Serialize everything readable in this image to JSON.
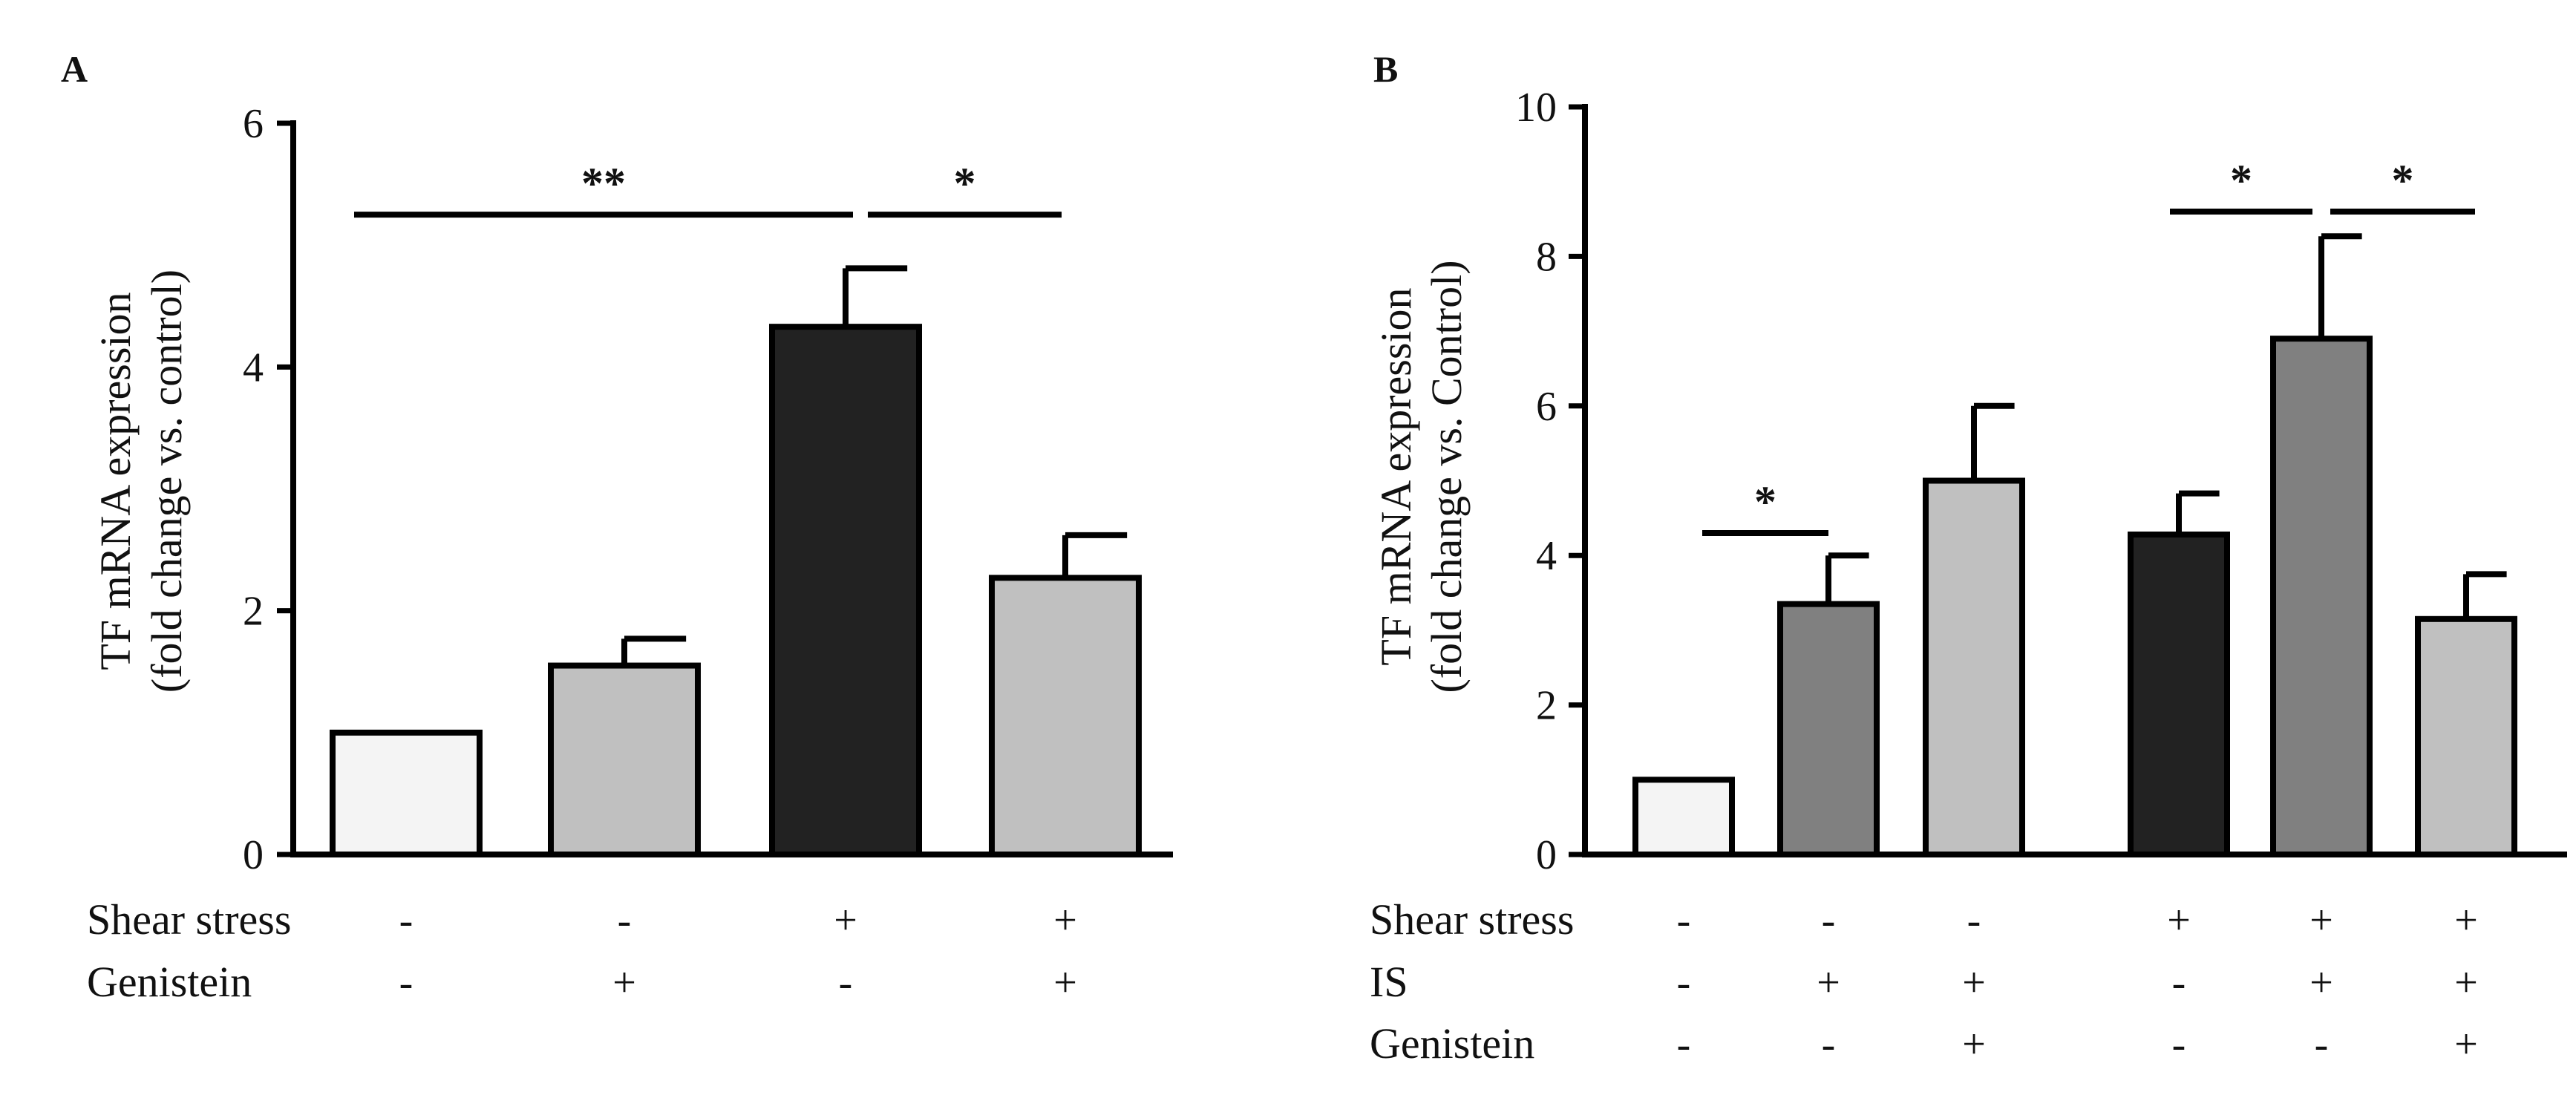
{
  "colors": {
    "white": "#f4f4f4",
    "light": "#c0c0c0",
    "mid": "#808080",
    "dark": "#222222",
    "line": "#000000"
  },
  "chart_data": [
    {
      "panel": "A",
      "type": "bar",
      "ylabel_line1": "TF mRNA expression",
      "ylabel_line2": "(fold change vs. control)",
      "ylim": [
        0,
        6
      ],
      "yticks": [
        0,
        2,
        4,
        6
      ],
      "values": [
        1.0,
        1.55,
        4.33,
        2.27
      ],
      "errors": [
        0.0,
        0.22,
        0.48,
        0.35
      ],
      "fills": [
        "white",
        "light",
        "dark",
        "light"
      ],
      "conditions": [
        {
          "label": "Shear stress",
          "signs": [
            "-",
            "-",
            "+",
            "+"
          ]
        },
        {
          "label": "Genistein",
          "signs": [
            "-",
            "+",
            "-",
            "+"
          ]
        }
      ],
      "significance": [
        {
          "from": 0,
          "to": 2,
          "label": "**",
          "y": 5.25
        },
        {
          "from": 2,
          "to": 3,
          "label": "*",
          "y": 5.25
        }
      ]
    },
    {
      "panel": "B",
      "type": "bar",
      "ylabel_line1": "TF mRNA expression",
      "ylabel_line2": "(fold change vs. Control)",
      "ylim": [
        0,
        10
      ],
      "yticks": [
        0,
        2,
        4,
        6,
        8,
        10
      ],
      "values": [
        1.0,
        3.35,
        5.0,
        4.28,
        6.9,
        3.15
      ],
      "errors": [
        0.0,
        0.65,
        1.0,
        0.55,
        1.37,
        0.6
      ],
      "fills": [
        "white",
        "mid",
        "light",
        "dark",
        "mid",
        "light"
      ],
      "conditions": [
        {
          "label": "Shear stress",
          "signs": [
            "-",
            "-",
            "-",
            "+",
            "+",
            "+"
          ]
        },
        {
          "label": "IS",
          "signs": [
            "-",
            "+",
            "+",
            "-",
            "+",
            "+"
          ]
        },
        {
          "label": "Genistein",
          "signs": [
            "-",
            "-",
            "+",
            "-",
            "-",
            "+"
          ]
        }
      ],
      "significance": [
        {
          "from": 0,
          "to": 1,
          "label": "*",
          "y": 4.3
        },
        {
          "from": 3,
          "to": 4,
          "label": "*",
          "y": 8.6
        },
        {
          "from": 4,
          "to": 5,
          "label": "*",
          "y": 8.6
        }
      ]
    }
  ]
}
